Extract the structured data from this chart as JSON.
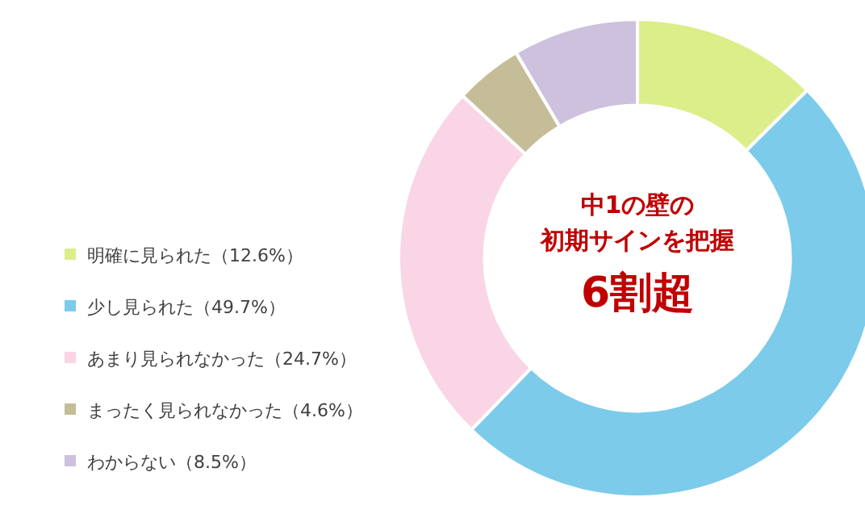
{
  "chart_data": {
    "type": "donut",
    "categories": [
      "明確に見られた（12.6%）",
      "少し見られた（49.7%）",
      "あまり見られなかった（24.7%）",
      "まったく見られなかった（4.6%）",
      "わからない（8.5%）"
    ],
    "values": [
      12.6,
      49.7,
      24.7,
      4.6,
      8.5
    ],
    "colors": [
      "#dcee8a",
      "#7ccbea",
      "#f9d5e5",
      "#c5bd97",
      "#cdc1dd"
    ],
    "legend": "left",
    "annotations": [
      "中1の壁の",
      "初期サインを把握",
      "6割超"
    ]
  }
}
